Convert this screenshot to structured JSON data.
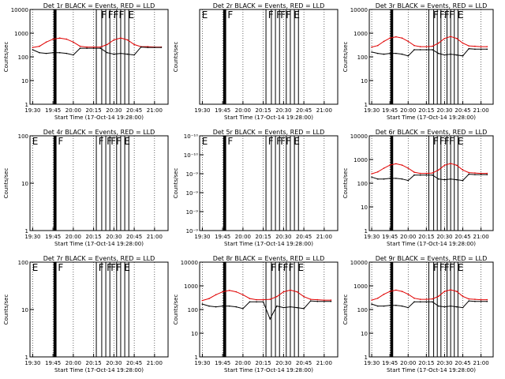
{
  "figure": {
    "colors": {
      "events": "#000000",
      "lld": "#e00000",
      "axes": "#000000",
      "grid": "#000000"
    }
  },
  "chart_data": [
    {
      "type": "line",
      "title": "Det 1r BLACK = Events, RED = LLD",
      "ylabel": "Counts/sec",
      "xlabel": "Start Time (17-Oct-14 19:28:00)",
      "x_ticks": [
        "19:30",
        "19:45",
        "20:00",
        "20:15",
        "20:30",
        "20:45",
        "21:00"
      ],
      "y_scale": "log",
      "ylim": [
        1,
        10000
      ],
      "y_ticks": [
        "1",
        "10",
        "100",
        "1000",
        "10000"
      ],
      "grid": "vertical dotted",
      "flags": [
        "F",
        "F",
        "F",
        "F",
        "E"
      ],
      "series": [
        {
          "name": "LLD",
          "x": [
            "19:30",
            "19:35",
            "19:40",
            "19:45",
            "19:50",
            "19:55",
            "20:00",
            "20:05",
            "20:10",
            "20:15",
            "20:20",
            "20:25",
            "20:30",
            "20:35",
            "20:40",
            "20:45",
            "20:50",
            "20:55",
            "21:00",
            "21:05"
          ],
          "values": [
            250,
            280,
            420,
            560,
            620,
            560,
            420,
            280,
            260,
            260,
            260,
            330,
            520,
            620,
            520,
            330,
            270,
            270,
            260,
            260
          ]
        },
        {
          "name": "Events",
          "x": [
            "19:30",
            "19:35",
            "19:40",
            "19:45",
            "19:50",
            "19:55",
            "20:00",
            "20:05",
            "20:10",
            "20:15",
            "20:20",
            "20:25",
            "20:30",
            "20:35",
            "20:40",
            "20:45",
            "20:50",
            "20:55",
            "21:00",
            "21:05"
          ],
          "values": [
            200,
            150,
            140,
            150,
            150,
            140,
            120,
            230,
            230,
            230,
            230,
            150,
            130,
            140,
            130,
            120,
            260,
            250,
            250,
            250
          ]
        }
      ]
    },
    {
      "type": "line",
      "title": "Det 2r BLACK = Events, RED = LLD",
      "ylabel": "Counts/sec",
      "xlabel": "Start Time (17-Oct-14 19:28:00)",
      "x_ticks": [
        "19:30",
        "19:45",
        "20:00",
        "20:15",
        "20:30",
        "20:45",
        "21:00"
      ],
      "y_scale": "log",
      "ylim": [
        1,
        10000
      ],
      "y_ticks": [],
      "grid": "vertical dotted",
      "flags": [
        "E",
        "F",
        "F",
        "F",
        "F",
        "F",
        "E"
      ],
      "series": []
    },
    {
      "type": "line",
      "title": "Det 3r BLACK = Events, RED = LLD",
      "ylabel": "Counts/sec",
      "xlabel": "Start Time (17-Oct-14 19:28:00)",
      "x_ticks": [
        "19:30",
        "19:45",
        "20:00",
        "20:15",
        "20:30",
        "20:45",
        "21:00"
      ],
      "y_scale": "log",
      "ylim": [
        1,
        10000
      ],
      "y_ticks": [
        "1",
        "10",
        "100",
        "1000",
        "10000"
      ],
      "grid": "vertical dotted",
      "flags": [
        "F",
        "F",
        "F",
        "F",
        "E"
      ],
      "series": [
        {
          "name": "LLD",
          "x": [
            "19:30",
            "19:35",
            "19:40",
            "19:45",
            "19:50",
            "19:55",
            "20:00",
            "20:05",
            "20:10",
            "20:15",
            "20:20",
            "20:25",
            "20:30",
            "20:35",
            "20:40",
            "20:45",
            "20:50",
            "20:55",
            "21:00",
            "21:05"
          ],
          "values": [
            260,
            300,
            450,
            620,
            700,
            620,
            450,
            300,
            270,
            270,
            280,
            380,
            600,
            720,
            600,
            380,
            290,
            280,
            270,
            270
          ]
        },
        {
          "name": "Events",
          "x": [
            "19:30",
            "19:35",
            "19:40",
            "19:45",
            "19:50",
            "19:55",
            "20:00",
            "20:05",
            "20:10",
            "20:15",
            "20:20",
            "20:25",
            "20:30",
            "20:35",
            "20:40",
            "20:45",
            "20:50",
            "20:55",
            "21:00",
            "21:05"
          ],
          "values": [
            160,
            140,
            130,
            140,
            140,
            130,
            110,
            200,
            200,
            200,
            200,
            140,
            120,
            130,
            120,
            110,
            220,
            210,
            210,
            210
          ]
        }
      ]
    },
    {
      "type": "line",
      "title": "Det 4r BLACK = Events, RED = LLD",
      "ylabel": "Counts/sec",
      "xlabel": "Start Time (17-Oct-14 19:28:00)",
      "x_ticks": [
        "19:30",
        "19:45",
        "20:00",
        "20:15",
        "20:30",
        "20:45",
        "21:00"
      ],
      "y_scale": "log",
      "ylim": [
        1,
        100
      ],
      "y_ticks": [
        "1",
        "10",
        "100"
      ],
      "grid": "vertical dotted",
      "flags": [
        "E",
        "F",
        "F",
        "F",
        "F",
        "F",
        "E"
      ],
      "series": []
    },
    {
      "type": "line",
      "title": "Det 5r BLACK = Events, RED = LLD",
      "ylabel": "Counts/sec",
      "xlabel": "Start Time (17-Oct-14 19:28:00)",
      "x_ticks": [
        "19:30",
        "19:45",
        "20:00",
        "20:15",
        "20:30",
        "20:45",
        "21:00"
      ],
      "y_scale": "log",
      "ylim": [
        1e-10,
        1e-09
      ],
      "y_ticks": [
        "10⁻⁹",
        "10⁻⁹",
        "10⁻⁹",
        "10⁻⁹",
        "10⁻¹⁰",
        "10⁻¹⁰"
      ],
      "grid": "vertical dotted",
      "flags": [
        "E",
        "F",
        "F",
        "F",
        "F",
        "F",
        "E"
      ],
      "series": []
    },
    {
      "type": "line",
      "title": "Det 6r BLACK = Events, RED = LLD",
      "ylabel": "Counts/sec",
      "xlabel": "Start Time (17-Oct-14 19:28:00)",
      "x_ticks": [
        "19:30",
        "19:45",
        "20:00",
        "20:15",
        "20:30",
        "20:45",
        "21:00"
      ],
      "y_scale": "log",
      "ylim": [
        1,
        10000
      ],
      "y_ticks": [
        "1",
        "10",
        "100",
        "1000",
        "10000"
      ],
      "grid": "vertical dotted",
      "flags": [
        "F",
        "F",
        "F",
        "F",
        "E"
      ],
      "series": [
        {
          "name": "LLD",
          "x": [
            "19:30",
            "19:35",
            "19:40",
            "19:45",
            "19:50",
            "19:55",
            "20:00",
            "20:05",
            "20:10",
            "20:15",
            "20:20",
            "20:25",
            "20:30",
            "20:35",
            "20:40",
            "20:45",
            "20:50",
            "20:55",
            "21:00",
            "21:05"
          ],
          "values": [
            250,
            300,
            430,
            580,
            660,
            580,
            430,
            290,
            260,
            260,
            270,
            360,
            570,
            680,
            570,
            360,
            280,
            270,
            260,
            260
          ]
        },
        {
          "name": "Events",
          "x": [
            "19:30",
            "19:35",
            "19:40",
            "19:45",
            "19:50",
            "19:55",
            "20:00",
            "20:05",
            "20:10",
            "20:15",
            "20:20",
            "20:25",
            "20:30",
            "20:35",
            "20:40",
            "20:45",
            "20:50",
            "20:55",
            "21:00",
            "21:05"
          ],
          "values": [
            180,
            150,
            150,
            160,
            160,
            150,
            130,
            220,
            220,
            220,
            220,
            150,
            140,
            150,
            140,
            130,
            240,
            230,
            230,
            230
          ]
        }
      ]
    },
    {
      "type": "line",
      "title": "Det 7r BLACK = Events, RED = LLD",
      "ylabel": "Counts/sec",
      "xlabel": "Start Time (17-Oct-14 19:28:00)",
      "x_ticks": [
        "19:30",
        "19:45",
        "20:00",
        "20:15",
        "20:30",
        "20:45",
        "21:00"
      ],
      "y_scale": "log",
      "ylim": [
        1,
        100
      ],
      "y_ticks": [
        "1",
        "10",
        "100"
      ],
      "grid": "vertical dotted",
      "flags": [
        "E",
        "F",
        "F",
        "F",
        "F",
        "F",
        "E"
      ],
      "series": []
    },
    {
      "type": "line",
      "title": "Det 8r BLACK = Events, RED = LLD",
      "ylabel": "Counts/sec",
      "xlabel": "Start Time (17-Oct-14 19:28:00)",
      "x_ticks": [
        "19:30",
        "19:45",
        "20:00",
        "20:15",
        "20:30",
        "20:45",
        "21:00"
      ],
      "y_scale": "log",
      "ylim": [
        1,
        10000
      ],
      "y_ticks": [
        "1",
        "10",
        "100",
        "1000",
        "10000"
      ],
      "grid": "vertical dotted",
      "flags": [
        "F",
        "F",
        "F",
        "F",
        "E"
      ],
      "series": [
        {
          "name": "LLD",
          "x": [
            "19:30",
            "19:35",
            "19:40",
            "19:45",
            "19:50",
            "19:55",
            "20:00",
            "20:05",
            "20:10",
            "20:15",
            "20:20",
            "20:25",
            "20:30",
            "20:35",
            "20:40",
            "20:45",
            "20:50",
            "20:55",
            "21:00",
            "21:05"
          ],
          "values": [
            240,
            290,
            420,
            560,
            640,
            560,
            420,
            290,
            260,
            260,
            270,
            350,
            560,
            660,
            560,
            350,
            270,
            260,
            250,
            250
          ]
        },
        {
          "name": "Events",
          "x": [
            "19:30",
            "19:35",
            "19:40",
            "19:45",
            "19:50",
            "19:55",
            "20:00",
            "20:05",
            "20:10",
            "20:15",
            "20:20",
            "20:25",
            "20:30",
            "20:35",
            "20:40",
            "20:45",
            "20:50",
            "20:55",
            "21:00",
            "21:05"
          ],
          "values": [
            170,
            140,
            130,
            140,
            140,
            130,
            110,
            210,
            210,
            210,
            40,
            140,
            120,
            130,
            120,
            110,
            230,
            220,
            220,
            220
          ]
        }
      ]
    },
    {
      "type": "line",
      "title": "Det 9r BLACK = Events, RED = LLD",
      "ylabel": "Counts/sec",
      "xlabel": "Start Time (17-Oct-14 19:28:00)",
      "x_ticks": [
        "19:30",
        "19:45",
        "20:00",
        "20:15",
        "20:30",
        "20:45",
        "21:00"
      ],
      "y_scale": "log",
      "ylim": [
        1,
        10000
      ],
      "y_ticks": [
        "1",
        "10",
        "100",
        "1000",
        "10000"
      ],
      "grid": "vertical dotted",
      "flags": [
        "F",
        "F",
        "F",
        "F",
        "E"
      ],
      "series": [
        {
          "name": "LLD",
          "x": [
            "19:30",
            "19:35",
            "19:40",
            "19:45",
            "19:50",
            "19:55",
            "20:00",
            "20:05",
            "20:10",
            "20:15",
            "20:20",
            "20:25",
            "20:30",
            "20:35",
            "20:40",
            "20:45",
            "20:50",
            "20:55",
            "21:00",
            "21:05"
          ],
          "values": [
            250,
            300,
            440,
            580,
            660,
            580,
            440,
            300,
            270,
            270,
            280,
            360,
            580,
            680,
            580,
            360,
            280,
            270,
            260,
            260
          ]
        },
        {
          "name": "Events",
          "x": [
            "19:30",
            "19:35",
            "19:40",
            "19:45",
            "19:50",
            "19:55",
            "20:00",
            "20:05",
            "20:10",
            "20:15",
            "20:20",
            "20:25",
            "20:30",
            "20:35",
            "20:40",
            "20:45",
            "20:50",
            "20:55",
            "21:00",
            "21:05"
          ],
          "values": [
            170,
            140,
            140,
            150,
            150,
            140,
            120,
            210,
            210,
            210,
            210,
            140,
            130,
            140,
            130,
            120,
            230,
            220,
            220,
            220
          ]
        }
      ]
    }
  ]
}
